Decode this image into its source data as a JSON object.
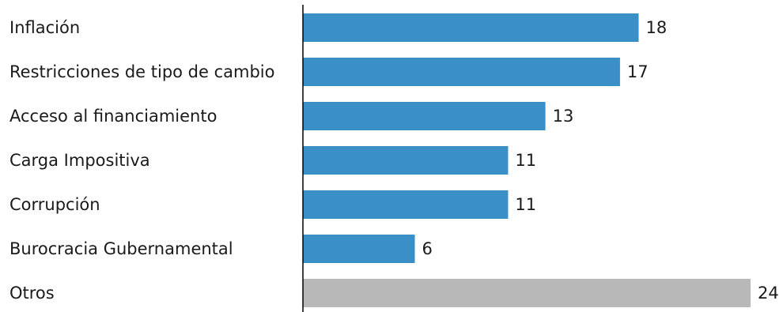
{
  "chart_data": {
    "type": "bar",
    "orientation": "horizontal",
    "title": "",
    "xlabel": "",
    "ylabel": "",
    "grid": false,
    "categories": [
      "Inflación",
      "Restricciones de tipo de cambio",
      "Acceso al financiamiento",
      "Carga Impositiva",
      "Corrupción",
      "Burocracia Gubernamental",
      "Otros"
    ],
    "values": [
      18,
      17,
      13,
      11,
      11,
      6,
      24
    ],
    "value_labels": [
      "18",
      "17",
      "13",
      "11",
      "11",
      "6",
      "24"
    ],
    "bar_colors": [
      "#3a8fc7",
      "#3a8fc7",
      "#3a8fc7",
      "#3a8fc7",
      "#3a8fc7",
      "#3a8fc7",
      "#b8b8b8"
    ],
    "xlim": [
      0,
      24
    ]
  },
  "colors": {
    "axis": "#000000",
    "text": "#1a1a1a"
  }
}
